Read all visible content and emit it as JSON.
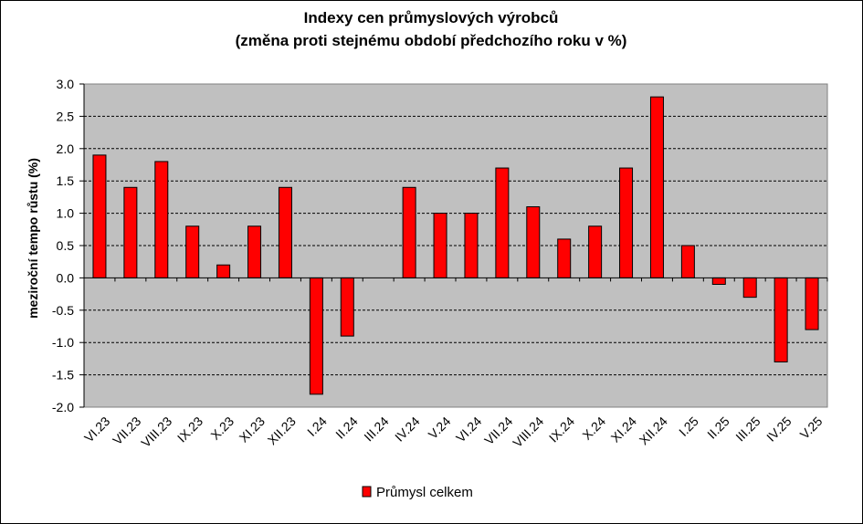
{
  "chart_data": {
    "type": "bar",
    "title": "Indexy cen průmyslových výrobců",
    "subtitle": "(změna proti stejnému období předchozího roku v %)",
    "xlabel": "",
    "ylabel": "meziroční tempo růstu (%)",
    "ylim": [
      -2.0,
      3.0
    ],
    "ytick_step": 0.5,
    "ytick_labels": [
      "3.0",
      "2.5",
      "2.0",
      "1.5",
      "1.0",
      "0.5",
      "0.0",
      "-0.5",
      "-1.0",
      "-1.5",
      "-2.0"
    ],
    "grid": "horizontal dashed",
    "legend_position": "bottom-center",
    "categories": [
      "VI.23",
      "VII.23",
      "VIII.23",
      "IX.23",
      "X.23",
      "XI.23",
      "XII.23",
      "I.24",
      "II.24",
      "III.24",
      "IV.24",
      "V.24",
      "VI.24",
      "VII.24",
      "VIII.24",
      "IX.24",
      "X.24",
      "XI.24",
      "XII.24",
      "I.25",
      "II.25",
      "III.25",
      "IV.25",
      "V.25"
    ],
    "series": [
      {
        "name": "Průmysl celkem",
        "color": "#ff0000",
        "values": [
          1.9,
          1.4,
          1.8,
          0.8,
          0.2,
          0.8,
          1.4,
          -1.8,
          -0.9,
          0.0,
          1.4,
          1.0,
          1.0,
          1.7,
          1.1,
          0.6,
          0.8,
          1.7,
          2.8,
          0.5,
          -0.1,
          -0.3,
          -1.3,
          -0.8
        ]
      }
    ],
    "colors": {
      "plot_background": "#c0c0c0",
      "bar_fill": "#ff0000",
      "bar_stroke": "#000000"
    }
  }
}
